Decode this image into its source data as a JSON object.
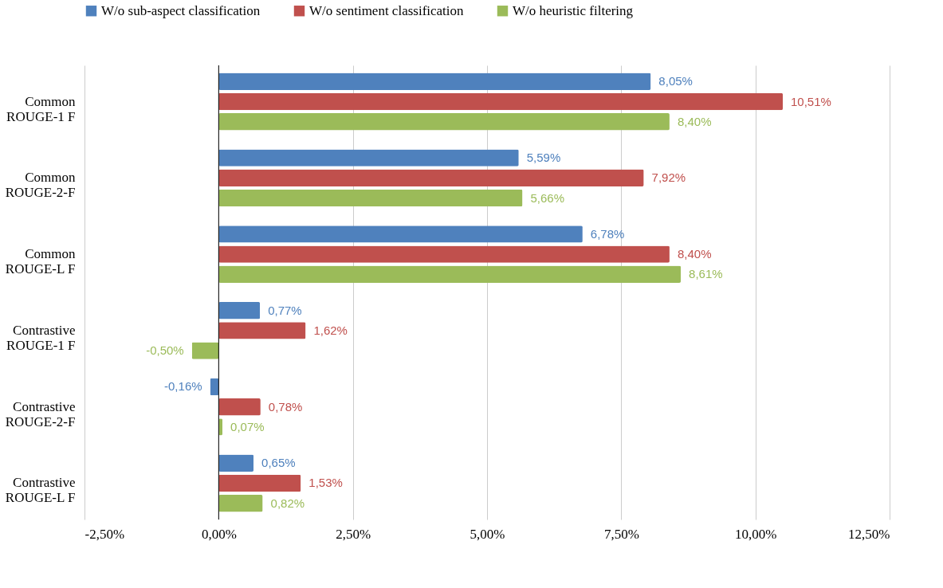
{
  "chart_data": {
    "type": "bar",
    "orientation": "horizontal",
    "categories": [
      "Common ROUGE-1 F",
      "Common ROUGE-2-F",
      "Common ROUGE-L F",
      "Contrastive ROUGE-1 F",
      "Contrastive ROUGE-2-F",
      "Contrastive ROUGE-L F"
    ],
    "series": [
      {
        "name": "W/o sub-aspect classification",
        "color": "#4f81bd",
        "values": [
          8.05,
          5.59,
          6.78,
          0.77,
          -0.16,
          0.65
        ],
        "value_labels": [
          "8,05%",
          "5,59%",
          "6,78%",
          "0,77%",
          "-0,16%",
          "0,65%"
        ]
      },
      {
        "name": "W/o sentiment classification",
        "color": "#c0504d",
        "values": [
          10.51,
          7.92,
          8.4,
          1.62,
          0.78,
          1.53
        ],
        "value_labels": [
          "10,51%",
          "7,92%",
          "8,40%",
          "1,62%",
          "0,78%",
          "1,53%"
        ]
      },
      {
        "name": "W/o heuristic filtering",
        "color": "#9bbb59",
        "values": [
          8.4,
          5.66,
          8.61,
          -0.5,
          0.07,
          0.82
        ],
        "value_labels": [
          "8,40%",
          "5,66%",
          "8,61%",
          "-0,50%",
          "0,07%",
          "0,82%"
        ]
      }
    ],
    "xlim": [
      -2.5,
      12.5
    ],
    "xticks": [
      {
        "value": -2.5,
        "label": "-2,50%"
      },
      {
        "value": 0,
        "label": "0,00%"
      },
      {
        "value": 2.5,
        "label": "2,50%"
      },
      {
        "value": 5,
        "label": "5,00%"
      },
      {
        "value": 7.5,
        "label": "7,50%"
      },
      {
        "value": 10,
        "label": "10,00%"
      },
      {
        "value": 12.5,
        "label": "12,50%"
      }
    ],
    "grid": "x",
    "legend": "top"
  }
}
